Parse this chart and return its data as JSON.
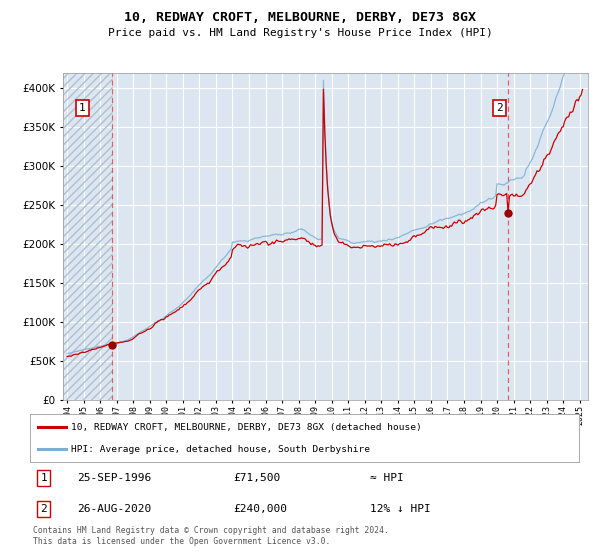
{
  "title": "10, REDWAY CROFT, MELBOURNE, DERBY, DE73 8GX",
  "subtitle": "Price paid vs. HM Land Registry's House Price Index (HPI)",
  "legend_line1": "10, REDWAY CROFT, MELBOURNE, DERBY, DE73 8GX (detached house)",
  "legend_line2": "HPI: Average price, detached house, South Derbyshire",
  "annotation1_date": "25-SEP-1996",
  "annotation1_price": "£71,500",
  "annotation1_hpi": "≈ HPI",
  "annotation2_date": "26-AUG-2020",
  "annotation2_price": "£240,000",
  "annotation2_hpi": "12% ↓ HPI",
  "footer": "Contains HM Land Registry data © Crown copyright and database right 2024.\nThis data is licensed under the Open Government Licence v3.0.",
  "xlim_start": 1993.75,
  "xlim_end": 2025.5,
  "ylim_min": 0,
  "ylim_max": 420000,
  "transaction1_year": 1996.73,
  "transaction1_value": 71500,
  "transaction2_year": 2020.65,
  "transaction2_value": 240000,
  "hpi_line_color": "#7bafd4",
  "price_line_color": "#cc0000",
  "vline_color": "#e06060",
  "dot_color": "#990000",
  "plot_bg_color": "#dce6f1",
  "grid_color": "#ffffff",
  "box_border_color": "#cc0000",
  "hatch_color": "#c8d4e8"
}
